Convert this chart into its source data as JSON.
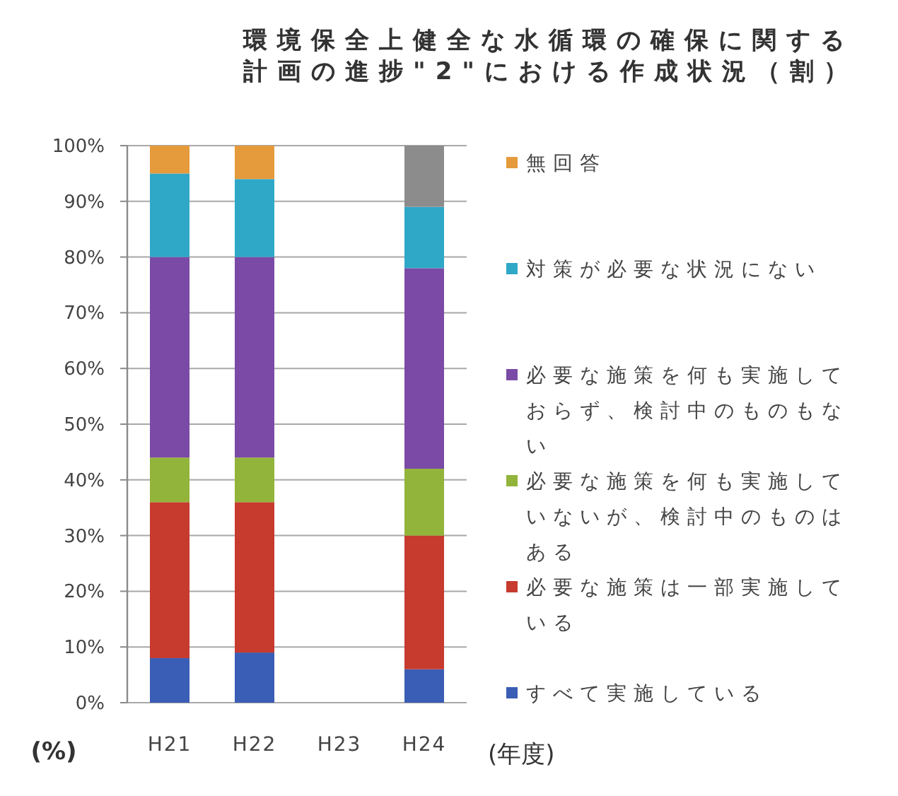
{
  "chart_data": {
    "type": "bar",
    "stacked": true,
    "title": "環境保全上健全な水循環の確保に関する計画の進捗\"2\"における作成状況（割）",
    "xlabel": "(年度)",
    "ylabel": "(%)",
    "categories": [
      "H21",
      "H22",
      "H23",
      "H24"
    ],
    "ylim": [
      0,
      100
    ],
    "yticks": [
      {
        "value": 0,
        "label": "0%"
      },
      {
        "value": 10,
        "label": "10%"
      },
      {
        "value": 20,
        "label": "20%"
      },
      {
        "value": 30,
        "label": "30%"
      },
      {
        "value": 40,
        "label": "40%"
      },
      {
        "value": 50,
        "label": "50%"
      },
      {
        "value": 60,
        "label": "60%"
      },
      {
        "value": 70,
        "label": "70%"
      },
      {
        "value": 80,
        "label": "80%"
      },
      {
        "value": 90,
        "label": "90%"
      },
      {
        "value": 100,
        "label": "100%"
      }
    ],
    "grid": "y",
    "legend": "right",
    "series": [
      {
        "name": "すべて実施している",
        "color": "#3a5db5",
        "values": [
          8,
          9,
          null,
          6
        ]
      },
      {
        "name": "必要な施策は一部実施している",
        "color": "#c73a2e",
        "values": [
          28,
          27,
          null,
          24
        ]
      },
      {
        "name": "必要な施策を何も実施していないが、検討中のものはある",
        "color": "#92b43a",
        "values": [
          8,
          8,
          null,
          12
        ]
      },
      {
        "name": "必要な施策を何も実施しておらず、検討中のものもない",
        "color": "#7b4aa6",
        "values": [
          36,
          36,
          null,
          36
        ]
      },
      {
        "name": "対策が必要な状況にない",
        "color": "#2fa8c8",
        "values": [
          15,
          14,
          null,
          11
        ]
      },
      {
        "name": "無回答",
        "colors": [
          "#e59a3b",
          "#e59a3b",
          null,
          "#8c8c8c"
        ],
        "values": [
          5,
          6,
          null,
          11
        ]
      }
    ]
  }
}
